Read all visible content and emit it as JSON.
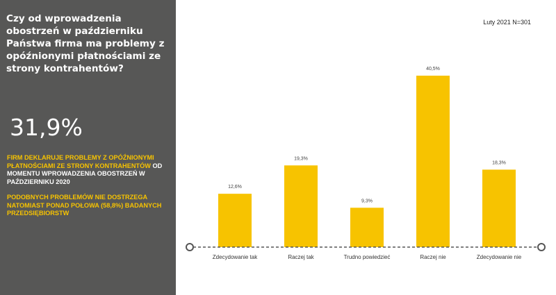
{
  "panel": {
    "question": "Czy od wprowadzenia obostrzeń w październiku Państwa firma ma problemy z opóźnionymi płatnościami ze strony kontrahentów?",
    "big_stat": "31,9%",
    "note1_highlight": "FIRM DEKLARUJE PROBLEMY Z OPÓŹNIONYMI PŁATNOŚCIAMI ZE STRONY KONTRAHENTÓW",
    "note1_rest": "OD MOMENTU WPROWADZENIA OBOSTRZEŃ W PAŹDZIERNIKU 2020",
    "note2": "PODOBNYCH PROBLEMÓW NIE DOSTRZEGA NATOMIAST PONAD POŁOWA (58,8%) BADANYCH PRZEDSIĘBIORSTW"
  },
  "survey_meta": "Luty 2021 N=301",
  "colors": {
    "panel_bg": "#575756",
    "accent": "#f7c300",
    "axis": "#555555"
  },
  "chart_data": {
    "type": "bar",
    "categories": [
      "Zdecydowanie tak",
      "Raczej tak",
      "Trudno powiedzieć",
      "Raczej nie",
      "Zdecydowanie nie"
    ],
    "values": [
      12.6,
      19.3,
      9.3,
      40.5,
      18.3
    ],
    "value_labels": [
      "12,6%",
      "19,3%",
      "9,3%",
      "40,5%",
      "18,3%"
    ],
    "unit": "%",
    "ylim": [
      0,
      42
    ],
    "grid": false,
    "legend": "none"
  }
}
